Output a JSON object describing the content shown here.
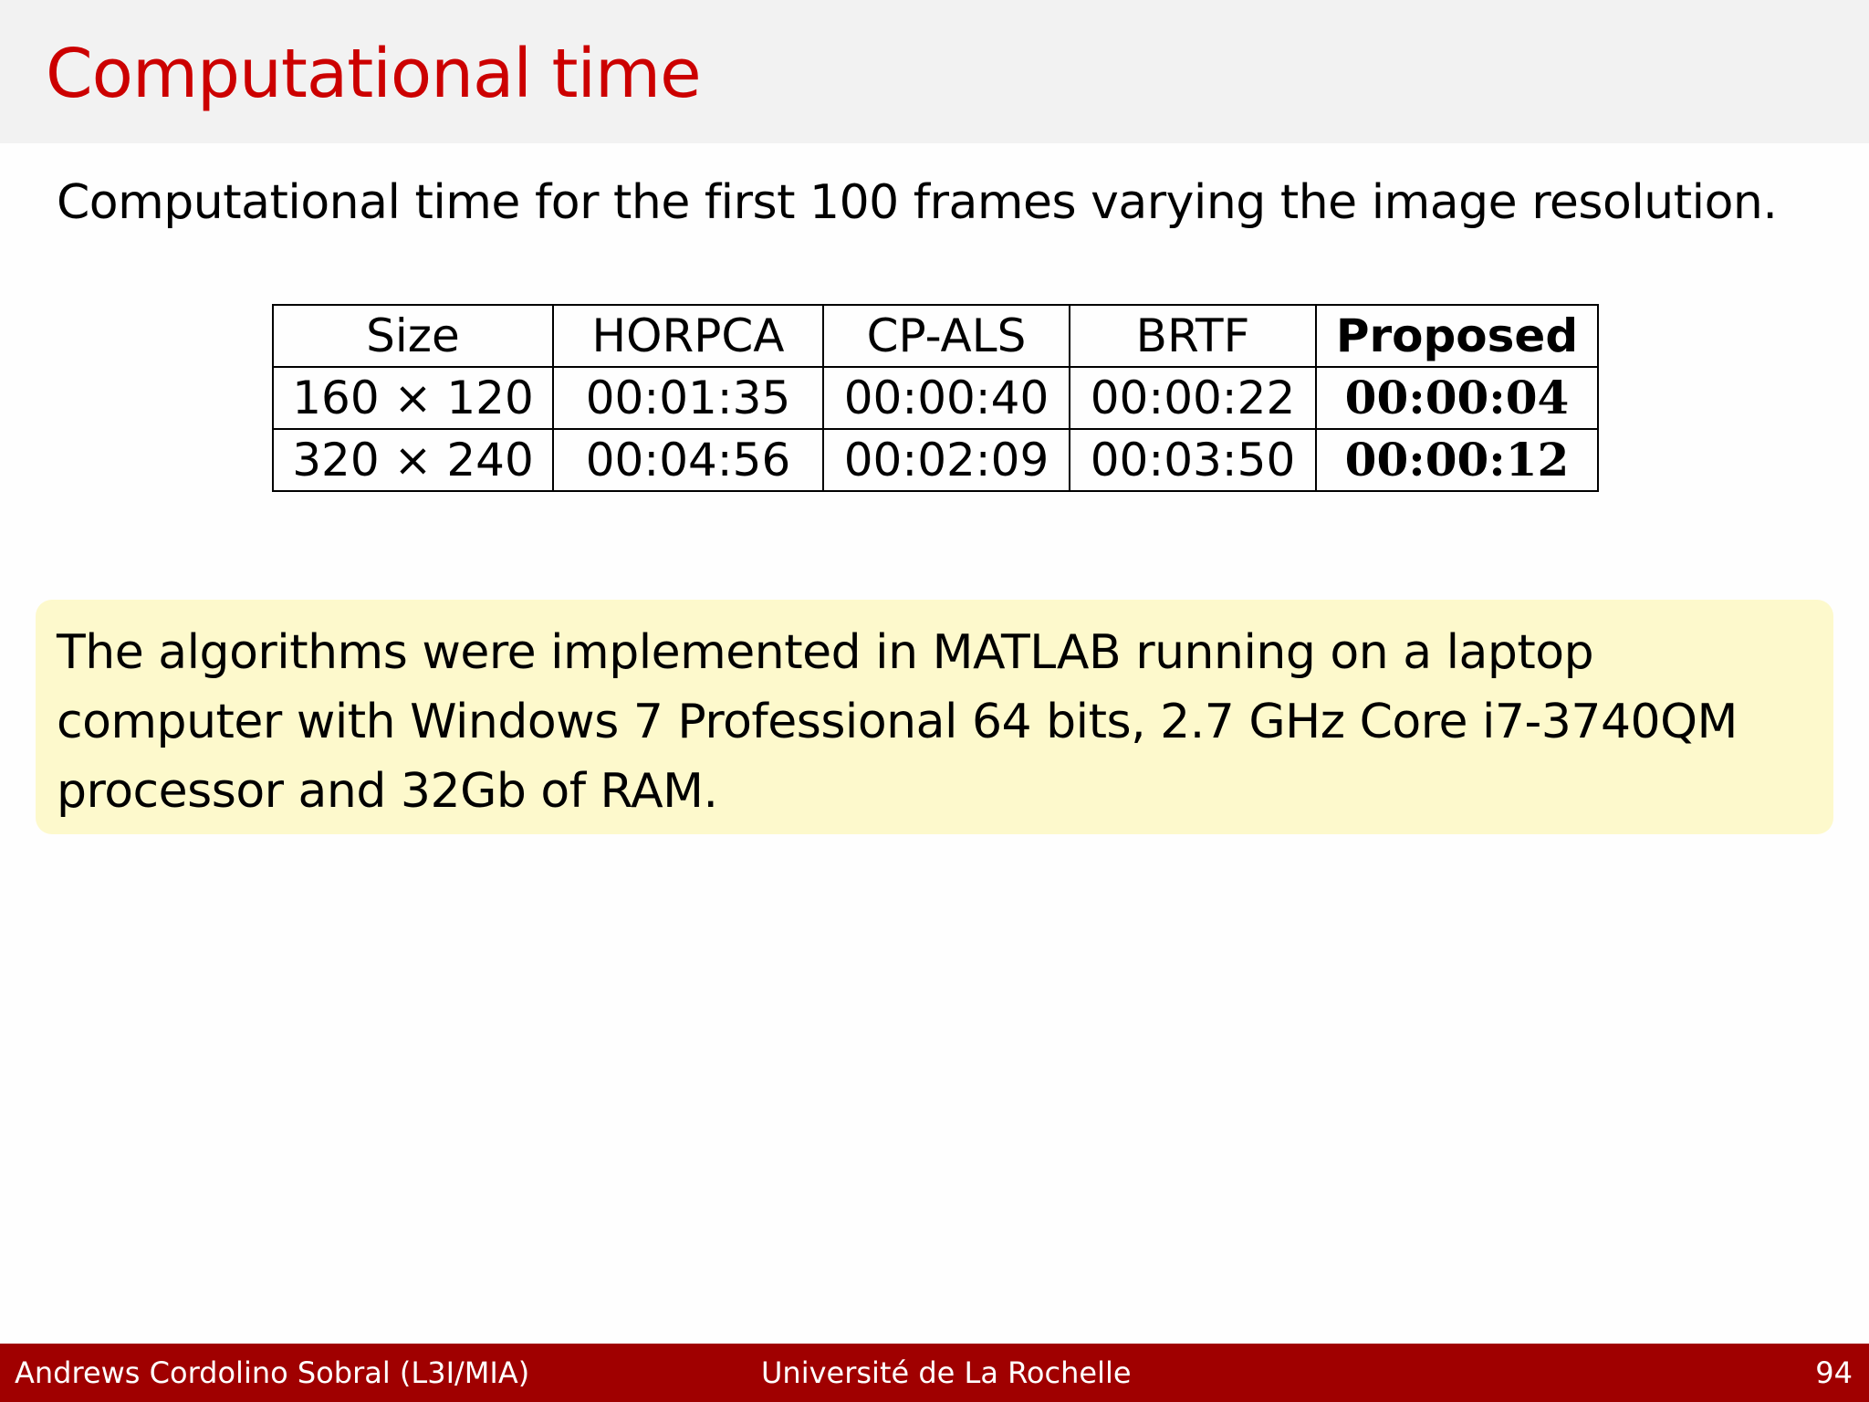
{
  "slide": {
    "title": "Computational time",
    "intro": "Computational time for the first 100 frames varying the image resolution."
  },
  "table": {
    "headers": [
      "Size",
      "HORPCA",
      "CP-ALS",
      "BRTF",
      "Proposed"
    ],
    "rows": [
      [
        "160 × 120",
        "00:01:35",
        "00:00:40",
        "00:00:22",
        "00:00:04"
      ],
      [
        "320 × 240",
        "00:04:56",
        "00:02:09",
        "00:03:50",
        "00:00:12"
      ]
    ]
  },
  "note": {
    "text": "The algorithms were implemented in MATLAB running on a laptop computer with Windows 7 Professional 64 bits, 2.7 GHz Core i7-3740QM processor and 32Gb of RAM."
  },
  "footer": {
    "author": "Andrews Cordolino Sobral (L3I/MIA)",
    "institution": "Université de La Rochelle",
    "page": "94"
  },
  "colors": {
    "title": "#cc0000",
    "footer_bg": "#a00000",
    "note_bg": "#fdf9cc"
  }
}
